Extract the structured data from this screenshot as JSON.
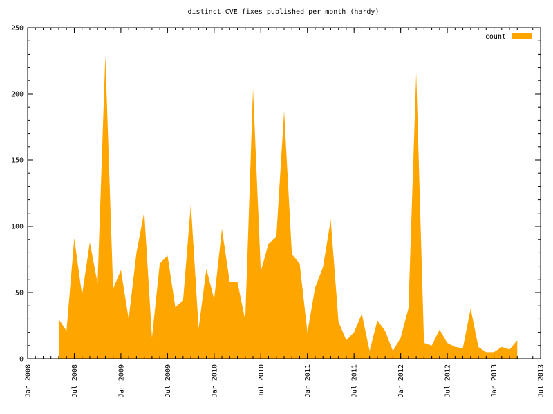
{
  "chart_data": {
    "type": "area",
    "title": "distinct CVE fixes published per month (hardy)",
    "x": [
      "2008-05",
      "2008-06",
      "2008-07",
      "2008-08",
      "2008-09",
      "2008-10",
      "2008-11",
      "2008-12",
      "2009-01",
      "2009-02",
      "2009-03",
      "2009-04",
      "2009-05",
      "2009-06",
      "2009-07",
      "2009-08",
      "2009-09",
      "2009-10",
      "2009-11",
      "2009-12",
      "2010-01",
      "2010-02",
      "2010-03",
      "2010-04",
      "2010-05",
      "2010-06",
      "2010-07",
      "2010-08",
      "2010-09",
      "2010-10",
      "2010-11",
      "2010-12",
      "2011-01",
      "2011-02",
      "2011-03",
      "2011-04",
      "2011-05",
      "2011-06",
      "2011-07",
      "2011-08",
      "2011-09",
      "2011-10",
      "2011-11",
      "2011-12",
      "2012-01",
      "2012-02",
      "2012-03",
      "2012-04",
      "2012-05",
      "2012-06",
      "2012-07",
      "2012-08",
      "2012-09",
      "2012-10",
      "2012-11",
      "2012-12",
      "2013-01",
      "2013-02",
      "2013-03",
      "2013-04"
    ],
    "series": [
      {
        "name": "count",
        "color": "#ffa500",
        "values": [
          30,
          21,
          91,
          48,
          88,
          57,
          229,
          53,
          67,
          30,
          80,
          111,
          16,
          72,
          78,
          39,
          44,
          117,
          23,
          68,
          45,
          98,
          58,
          58,
          29,
          204,
          66,
          87,
          92,
          187,
          79,
          72,
          20,
          54,
          69,
          105,
          28,
          14,
          20,
          34,
          6,
          29,
          21,
          6,
          16,
          38,
          216,
          12,
          10,
          22,
          12,
          9,
          8,
          38,
          9,
          5,
          5,
          9,
          7,
          14
        ]
      }
    ],
    "xlim": [
      "2008-01",
      "2013-07"
    ],
    "xticks": [
      {
        "value": "2008-01",
        "label": "Jan 2008"
      },
      {
        "value": "2008-07",
        "label": "Jul 2008"
      },
      {
        "value": "2009-01",
        "label": "Jan 2009"
      },
      {
        "value": "2009-07",
        "label": "Jul 2009"
      },
      {
        "value": "2010-01",
        "label": "Jan 2010"
      },
      {
        "value": "2010-07",
        "label": "Jul 2010"
      },
      {
        "value": "2011-01",
        "label": "Jan 2011"
      },
      {
        "value": "2011-07",
        "label": "Jul 2011"
      },
      {
        "value": "2012-01",
        "label": "Jan 2012"
      },
      {
        "value": "2012-07",
        "label": "Jul 2012"
      },
      {
        "value": "2013-01",
        "label": "Jan 2013"
      },
      {
        "value": "2013-07",
        "label": "Jul 2013"
      }
    ],
    "ylim": [
      0,
      250
    ],
    "yticks": [
      0,
      50,
      100,
      150,
      200,
      250
    ],
    "legend": "upper right"
  }
}
